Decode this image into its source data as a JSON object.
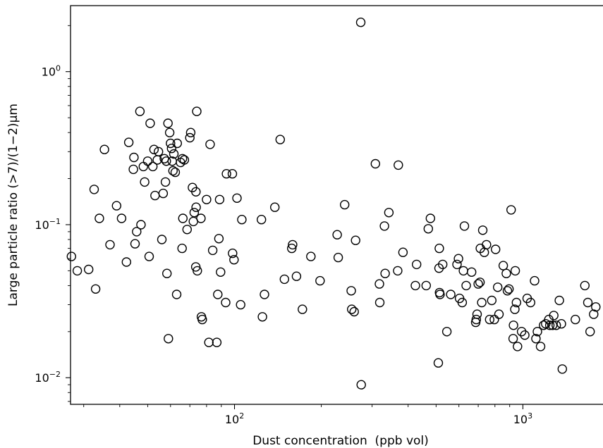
{
  "chart_data": {
    "type": "scatter",
    "title": "",
    "xlabel": "Dust concentration  (ppb vol)",
    "ylabel": "Large particle ratio (>7)/(1−2)μm",
    "xscale": "log",
    "yscale": "log",
    "xlim": [
      27,
      1950
    ],
    "ylim": [
      0.0067,
      2.7
    ],
    "xticks": [
      {
        "value": 100,
        "base": "10",
        "exp": "2"
      },
      {
        "value": 1000,
        "base": "10",
        "exp": "3"
      }
    ],
    "yticks": [
      {
        "value": 0.01,
        "base": "10",
        "exp": "−2"
      },
      {
        "value": 0.1,
        "base": "10",
        "exp": "−1"
      },
      {
        "value": 1,
        "base": "10",
        "exp": "0"
      }
    ],
    "grid": false,
    "legend": "none",
    "marker": "open-circle",
    "marker_color": "#000000",
    "points": [
      [
        27.2,
        0.062
      ],
      [
        28.5,
        0.05
      ],
      [
        31.2,
        0.051
      ],
      [
        32.6,
        0.17
      ],
      [
        33.0,
        0.038
      ],
      [
        34.0,
        0.11
      ],
      [
        35.4,
        0.31
      ],
      [
        37.0,
        0.074
      ],
      [
        39.0,
        0.133
      ],
      [
        40.6,
        0.11
      ],
      [
        42.2,
        0.057
      ],
      [
        43.0,
        0.345
      ],
      [
        44.6,
        0.23
      ],
      [
        44.8,
        0.275
      ],
      [
        45.2,
        0.075
      ],
      [
        45.8,
        0.09
      ],
      [
        47.0,
        0.55
      ],
      [
        47.4,
        0.1
      ],
      [
        48.3,
        0.24
      ],
      [
        48.8,
        0.19
      ],
      [
        50.0,
        0.26
      ],
      [
        50.6,
        0.062
      ],
      [
        51.0,
        0.46
      ],
      [
        52.1,
        0.24
      ],
      [
        52.6,
        0.31
      ],
      [
        53.0,
        0.155
      ],
      [
        54.0,
        0.265
      ],
      [
        54.5,
        0.3
      ],
      [
        56.0,
        0.08
      ],
      [
        56.6,
        0.16
      ],
      [
        57.1,
        0.27
      ],
      [
        57.6,
        0.19
      ],
      [
        58.0,
        0.26
      ],
      [
        58.3,
        0.048
      ],
      [
        58.8,
        0.46
      ],
      [
        59.0,
        0.018
      ],
      [
        59.6,
        0.4
      ],
      [
        60.0,
        0.34
      ],
      [
        60.5,
        0.315
      ],
      [
        60.8,
        0.26
      ],
      [
        61.2,
        0.225
      ],
      [
        61.6,
        0.29
      ],
      [
        62.3,
        0.22
      ],
      [
        63.0,
        0.035
      ],
      [
        63.3,
        0.34
      ],
      [
        65.0,
        0.255
      ],
      [
        65.8,
        0.07
      ],
      [
        66.0,
        0.27
      ],
      [
        66.2,
        0.11
      ],
      [
        67.0,
        0.265
      ],
      [
        68.5,
        0.093
      ],
      [
        70.0,
        0.37
      ],
      [
        70.5,
        0.4
      ],
      [
        71.5,
        0.175
      ],
      [
        72.0,
        0.105
      ],
      [
        72.5,
        0.12
      ],
      [
        73.4,
        0.053
      ],
      [
        73.5,
        0.164
      ],
      [
        73.6,
        0.13
      ],
      [
        74.0,
        0.55
      ],
      [
        74.3,
        0.05
      ],
      [
        76.5,
        0.11
      ],
      [
        76.8,
        0.025
      ],
      [
        77.3,
        0.024
      ],
      [
        80.0,
        0.146
      ],
      [
        81.5,
        0.017
      ],
      [
        82.3,
        0.335
      ],
      [
        84.0,
        0.068
      ],
      [
        86.8,
        0.017
      ],
      [
        87.5,
        0.035
      ],
      [
        88.3,
        0.081
      ],
      [
        88.8,
        0.146
      ],
      [
        89.5,
        0.049
      ],
      [
        93.2,
        0.031
      ],
      [
        93.8,
        0.215
      ],
      [
        98.3,
        0.215
      ],
      [
        98.5,
        0.065
      ],
      [
        99.6,
        0.059
      ],
      [
        102.0,
        0.149
      ],
      [
        105.0,
        0.03
      ],
      [
        106.0,
        0.108
      ],
      [
        124.0,
        0.108
      ],
      [
        125.0,
        0.025
      ],
      [
        127.0,
        0.035
      ],
      [
        138.0,
        0.13
      ],
      [
        144.0,
        0.36
      ],
      [
        149.0,
        0.044
      ],
      [
        158.0,
        0.07
      ],
      [
        159.0,
        0.074
      ],
      [
        164.0,
        0.046
      ],
      [
        172.0,
        0.028
      ],
      [
        184.0,
        0.062
      ],
      [
        198.0,
        0.043
      ],
      [
        227.0,
        0.086
      ],
      [
        229.0,
        0.061
      ],
      [
        241.0,
        0.135
      ],
      [
        254.0,
        0.037
      ],
      [
        255.0,
        0.028
      ],
      [
        260.0,
        0.027
      ],
      [
        263.0,
        0.079
      ],
      [
        274.0,
        2.1
      ],
      [
        275.0,
        0.009
      ],
      [
        308.0,
        0.25
      ],
      [
        318.0,
        0.041
      ],
      [
        319.0,
        0.031
      ],
      [
        331.0,
        0.098
      ],
      [
        333.0,
        0.048
      ],
      [
        343.0,
        0.12
      ],
      [
        368.0,
        0.05
      ],
      [
        370.0,
        0.245
      ],
      [
        384.0,
        0.066
      ],
      [
        424.0,
        0.04
      ],
      [
        428.0,
        0.055
      ],
      [
        462.0,
        0.04
      ],
      [
        470.0,
        0.094
      ],
      [
        478.0,
        0.11
      ],
      [
        509.0,
        0.0125
      ],
      [
        512.0,
        0.052
      ],
      [
        513.0,
        0.07
      ],
      [
        514.0,
        0.036
      ],
      [
        516.0,
        0.035
      ],
      [
        527.0,
        0.055
      ],
      [
        545.0,
        0.02
      ],
      [
        562.0,
        0.035
      ],
      [
        591.0,
        0.055
      ],
      [
        598.0,
        0.06
      ],
      [
        603.0,
        0.033
      ],
      [
        616.0,
        0.031
      ],
      [
        622.0,
        0.05
      ],
      [
        627.0,
        0.098
      ],
      [
        636.0,
        0.04
      ],
      [
        664.0,
        0.049
      ],
      [
        686.0,
        0.023
      ],
      [
        689.0,
        0.024
      ],
      [
        694.0,
        0.026
      ],
      [
        700.0,
        0.041
      ],
      [
        710.0,
        0.042
      ],
      [
        712.0,
        0.07
      ],
      [
        720.0,
        0.031
      ],
      [
        726.0,
        0.092
      ],
      [
        735.0,
        0.066
      ],
      [
        748.0,
        0.074
      ],
      [
        767.0,
        0.024
      ],
      [
        780.0,
        0.032
      ],
      [
        796.0,
        0.024
      ],
      [
        804.0,
        0.069
      ],
      [
        818.0,
        0.039
      ],
      [
        826.0,
        0.026
      ],
      [
        855.0,
        0.054
      ],
      [
        876.0,
        0.048
      ],
      [
        884.0,
        0.037
      ],
      [
        895.0,
        0.038
      ],
      [
        910.0,
        0.125
      ],
      [
        925.0,
        0.018
      ],
      [
        928.0,
        0.022
      ],
      [
        938.0,
        0.028
      ],
      [
        941.0,
        0.05
      ],
      [
        950.0,
        0.031
      ],
      [
        958.0,
        0.016
      ],
      [
        990.0,
        0.02
      ],
      [
        1015.0,
        0.019
      ],
      [
        1035.0,
        0.033
      ],
      [
        1063.0,
        0.031
      ],
      [
        1098.0,
        0.043
      ],
      [
        1110.0,
        0.018
      ],
      [
        1123.0,
        0.02
      ],
      [
        1152.0,
        0.016
      ],
      [
        1180.0,
        0.022
      ],
      [
        1200.0,
        0.0225
      ],
      [
        1230.0,
        0.024
      ],
      [
        1240.0,
        0.022
      ],
      [
        1268.0,
        0.022
      ],
      [
        1280.0,
        0.0255
      ],
      [
        1305.0,
        0.022
      ],
      [
        1338.0,
        0.032
      ],
      [
        1360.0,
        0.0225
      ],
      [
        1370.0,
        0.0114
      ],
      [
        1520.0,
        0.024
      ],
      [
        1640.0,
        0.04
      ],
      [
        1680.0,
        0.031
      ],
      [
        1710.0,
        0.02
      ],
      [
        1760.0,
        0.026
      ],
      [
        1790.0,
        0.029
      ]
    ]
  }
}
